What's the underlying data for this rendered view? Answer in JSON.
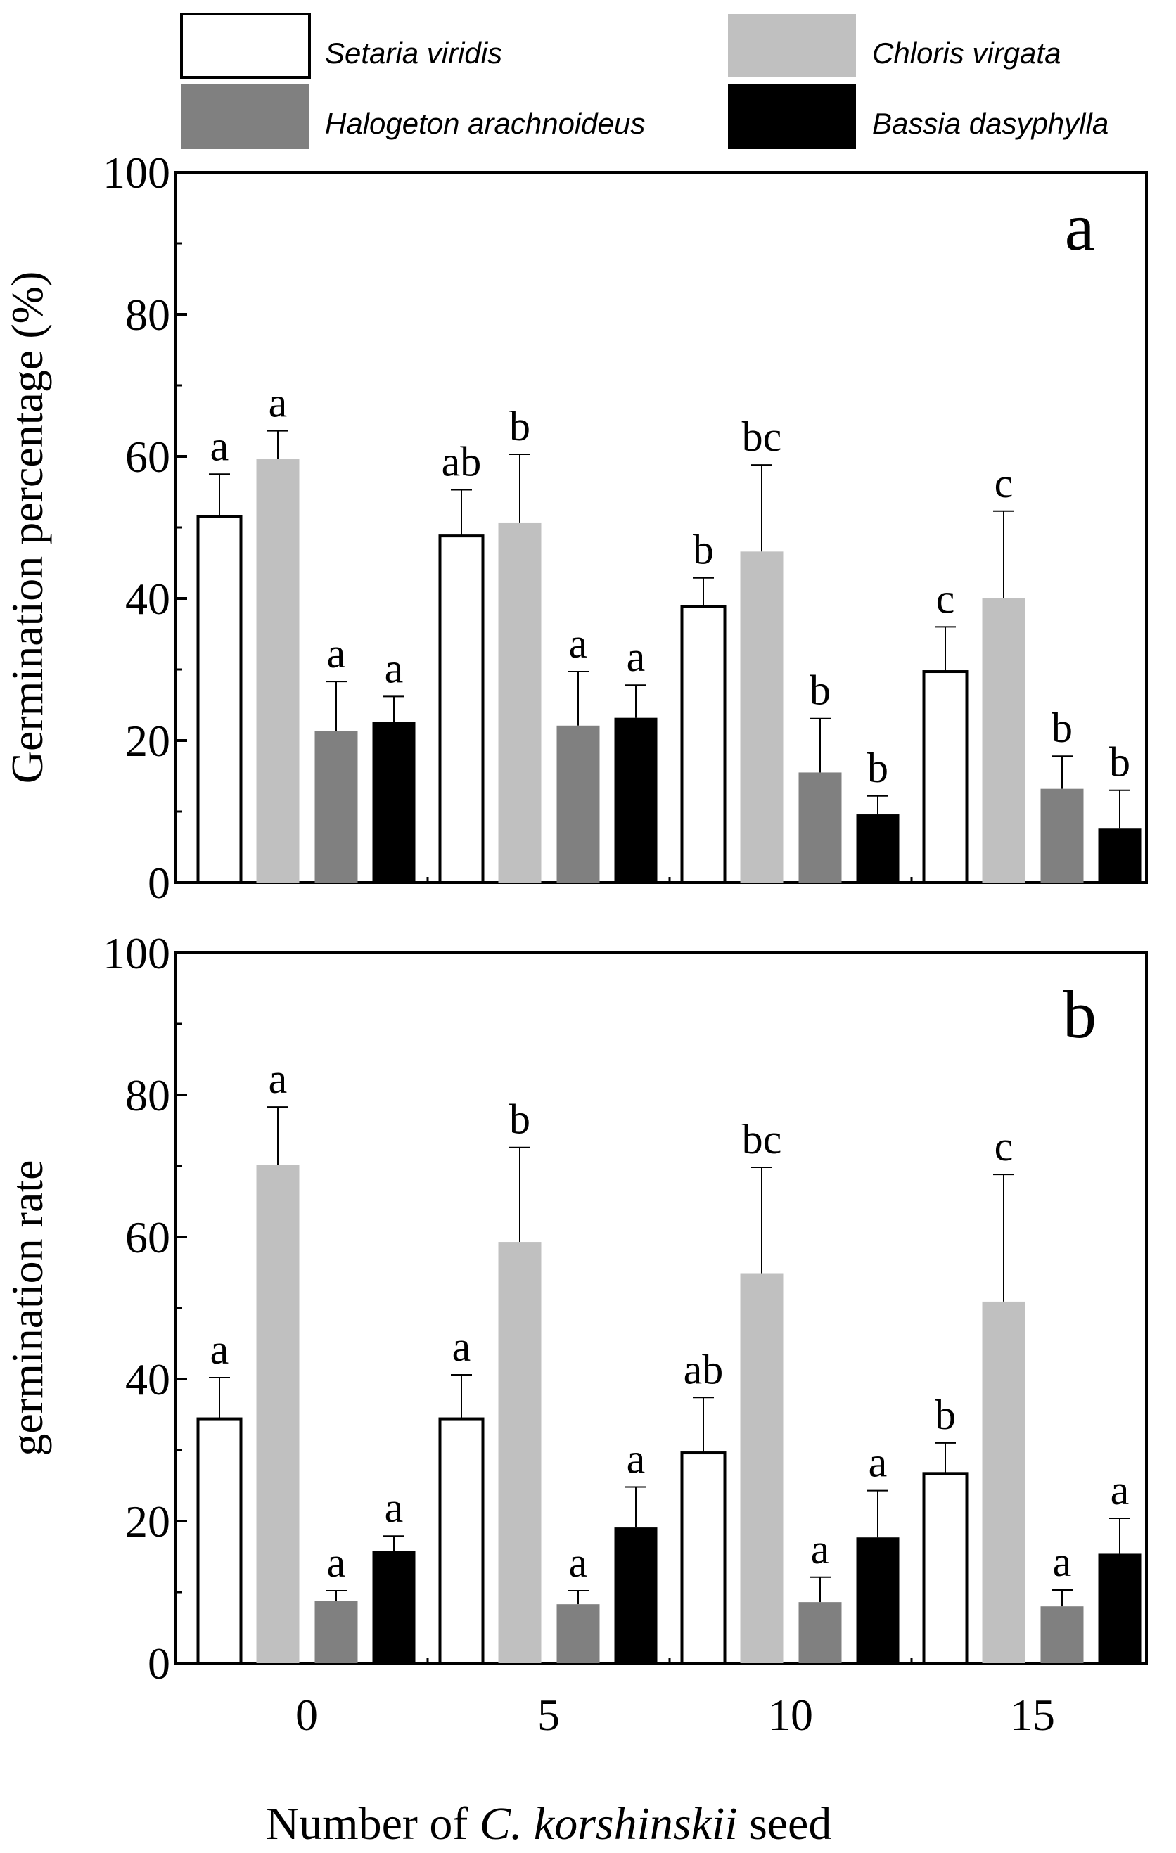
{
  "legend": {
    "items": [
      {
        "name": "Setaria viridis",
        "fill": "#ffffff"
      },
      {
        "name": "Chloris virgata",
        "fill": "#c0c0c0"
      },
      {
        "name": "Halogeton arachnoideus",
        "fill": "#808080"
      },
      {
        "name": "Bassia dasyphylla",
        "fill": "#000000"
      }
    ]
  },
  "xaxis": {
    "label_prefix": "Number of ",
    "label_italic": "C. korshinskii",
    "label_suffix": " seed"
  },
  "chart_data": [
    {
      "type": "bar",
      "panel_label": "a",
      "ylabel": "Germination percentage (%)",
      "ylim": [
        0,
        100
      ],
      "yticks": [
        0,
        20,
        40,
        60,
        80,
        100
      ],
      "categories": [
        "0",
        "5",
        "10",
        "15"
      ],
      "series": [
        {
          "name": "Setaria viridis",
          "values": [
            51.5,
            48.8,
            38.9,
            29.7
          ],
          "errors": [
            6.0,
            6.5,
            4.0,
            6.3
          ],
          "letters": [
            "a",
            "ab",
            "b",
            "c"
          ]
        },
        {
          "name": "Chloris virgata",
          "values": [
            59.6,
            50.6,
            46.6,
            40.0
          ],
          "errors": [
            4.0,
            9.7,
            12.2,
            12.3
          ],
          "letters": [
            "a",
            "b",
            "bc",
            "c"
          ]
        },
        {
          "name": "Halogeton arachnoideus",
          "values": [
            21.3,
            22.1,
            15.5,
            13.2
          ],
          "errors": [
            7.0,
            7.6,
            7.6,
            4.6
          ],
          "letters": [
            "a",
            "a",
            "b",
            "b"
          ]
        },
        {
          "name": "Bassia dasyphylla",
          "values": [
            22.6,
            23.2,
            9.6,
            7.6
          ],
          "errors": [
            3.6,
            4.6,
            2.6,
            5.4
          ],
          "letters": [
            "a",
            "a",
            "b",
            "b"
          ]
        }
      ]
    },
    {
      "type": "bar",
      "panel_label": "b",
      "ylabel": "germination rate",
      "ylim": [
        0,
        100
      ],
      "yticks": [
        0,
        20,
        40,
        60,
        80,
        100
      ],
      "categories": [
        "0",
        "5",
        "10",
        "15"
      ],
      "series": [
        {
          "name": "Setaria viridis",
          "values": [
            34.4,
            34.4,
            29.6,
            26.7
          ],
          "errors": [
            5.8,
            6.2,
            7.8,
            4.3
          ],
          "letters": [
            "a",
            "a",
            "ab",
            "b"
          ]
        },
        {
          "name": "Chloris virgata",
          "values": [
            70.1,
            59.3,
            54.9,
            50.9
          ],
          "errors": [
            8.2,
            13.3,
            14.9,
            17.9
          ],
          "letters": [
            "a",
            "b",
            "bc",
            "c"
          ]
        },
        {
          "name": "Halogeton arachnoideus",
          "values": [
            8.8,
            8.3,
            8.6,
            8.0
          ],
          "errors": [
            1.4,
            1.9,
            3.5,
            2.3
          ],
          "letters": [
            "a",
            "a",
            "a",
            "a"
          ]
        },
        {
          "name": "Bassia dasyphylla",
          "values": [
            15.8,
            19.1,
            17.7,
            15.4
          ],
          "errors": [
            2.1,
            5.7,
            6.6,
            5.0
          ],
          "letters": [
            "a",
            "a",
            "a",
            "a"
          ]
        }
      ]
    }
  ]
}
